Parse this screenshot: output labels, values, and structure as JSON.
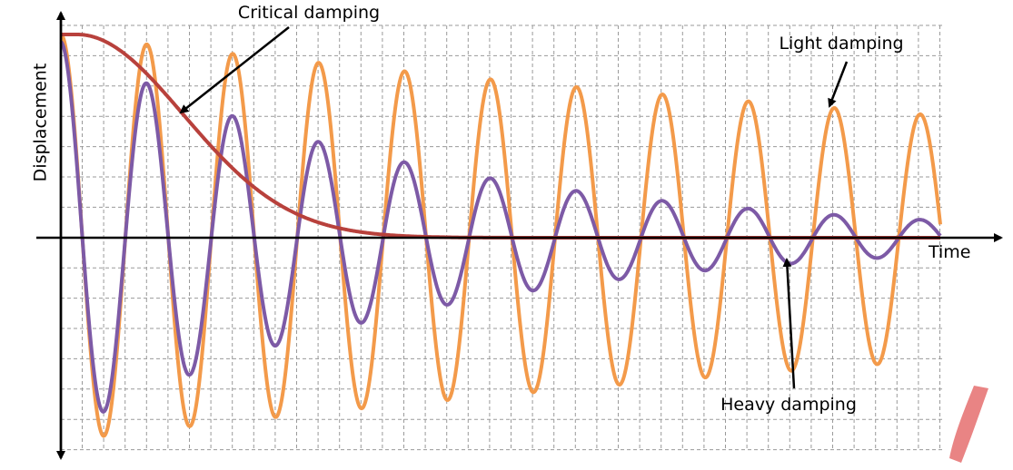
{
  "axes": {
    "y_label": "Displacement",
    "x_label": "Time"
  },
  "annotations": {
    "critical": "Critical damping",
    "light": "Light damping",
    "heavy": "Heavy damping"
  }
}
